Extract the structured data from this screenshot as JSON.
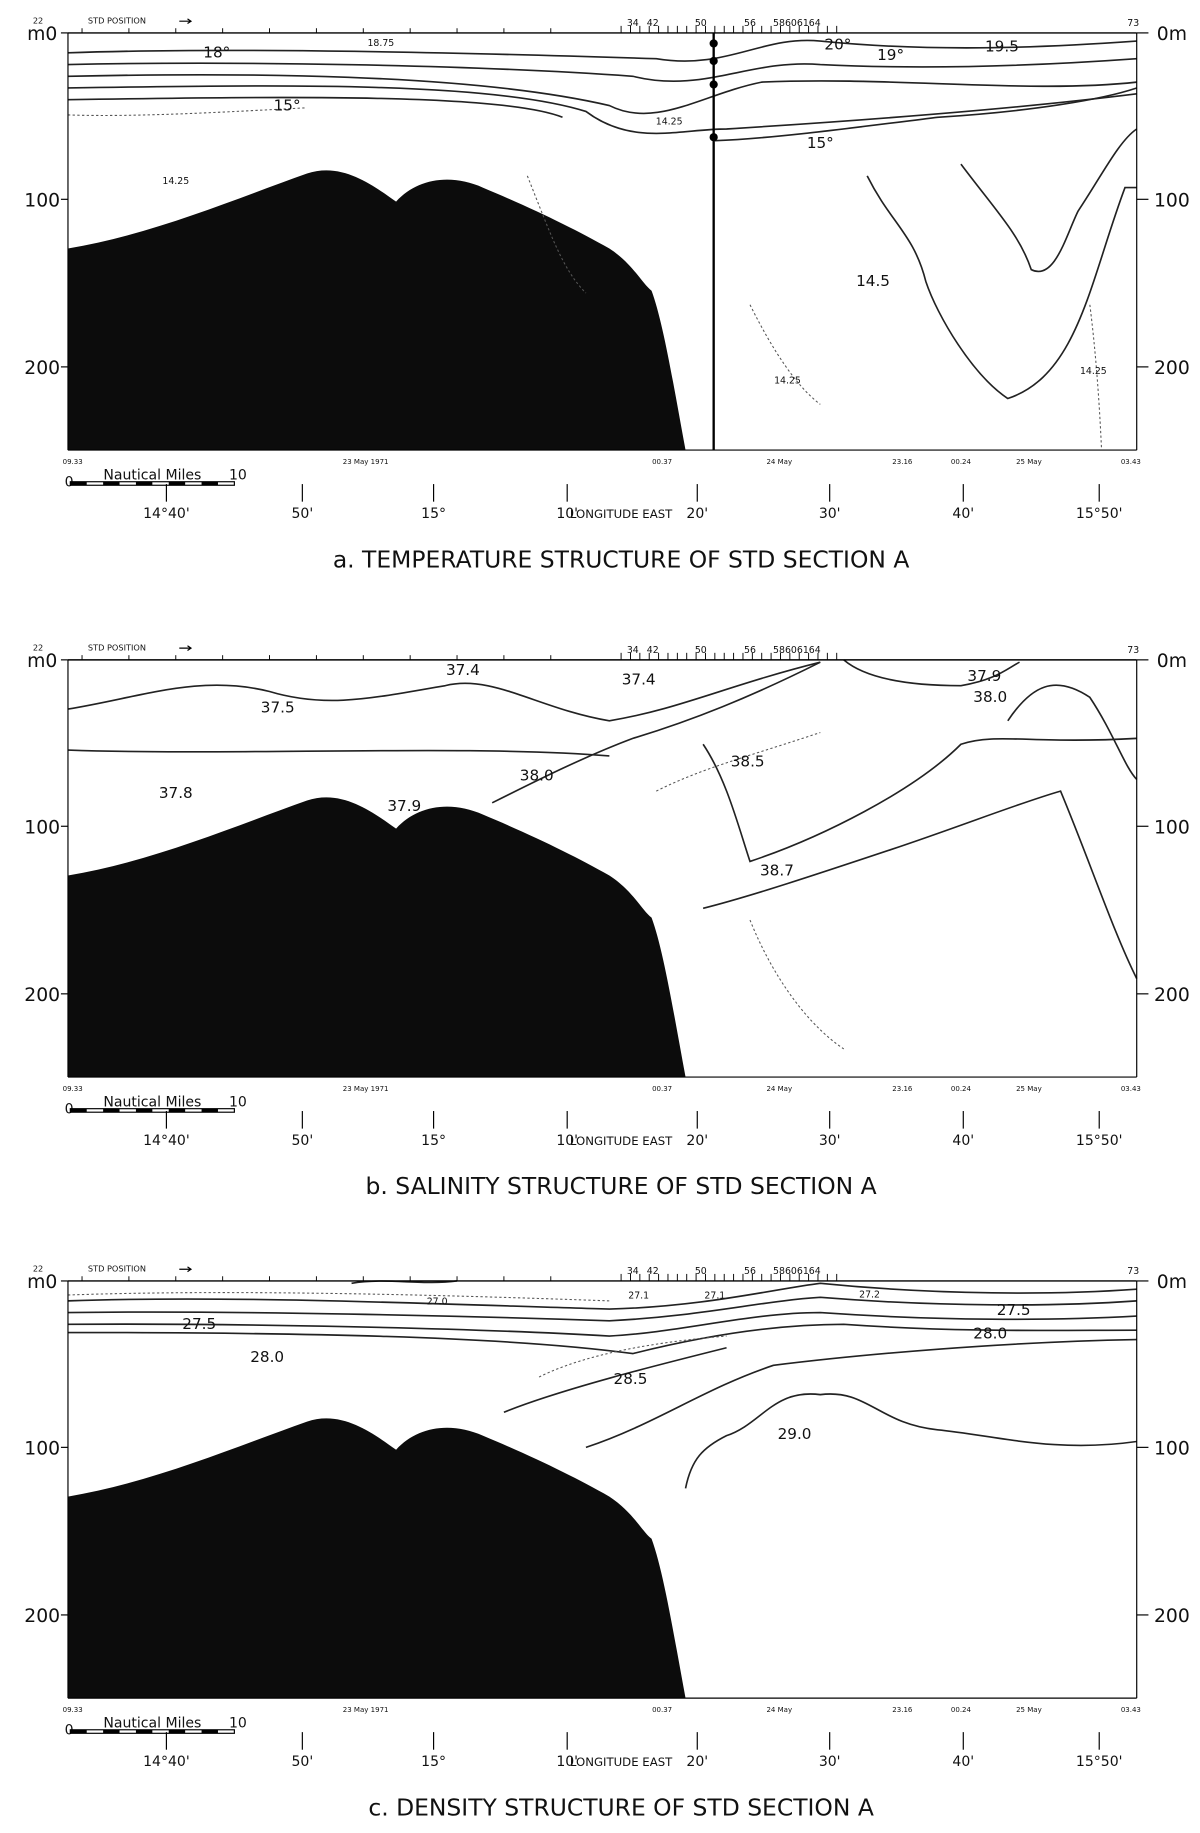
{
  "panels": [
    {
      "caption": "a. TEMPERATURE STRUCTURE OF STD SECTION A",
      "depth_left": [
        "m0",
        "100",
        "200"
      ],
      "depth_right": [
        "0m",
        "100",
        "200"
      ],
      "station_header": [
        "22",
        "STD POSITION"
      ],
      "stations": [
        "34",
        "42",
        "50",
        "56",
        "58606164",
        "73"
      ],
      "time_labels": [
        "09.33",
        "23 May 1971",
        "00.37",
        "24 May",
        "23.16",
        "00.24",
        "25 May",
        "03.43"
      ],
      "scale": {
        "label": "Nautical Miles",
        "start": "0",
        "end": "10"
      },
      "longitude_labels": [
        "14°40'",
        "50'",
        "15°",
        "10'",
        "LONGITUDE EAST",
        "20'",
        "30'",
        "40'",
        "15°50'"
      ],
      "contour_labels": [
        "18°",
        "18.75",
        "20°",
        "19°",
        "19.5",
        "15°",
        "14.25",
        "15°",
        "14.25",
        "14.5",
        "14.25",
        "14.25"
      ]
    },
    {
      "caption": "b. SALINITY STRUCTURE OF STD SECTION A",
      "depth_left": [
        "m0",
        "100",
        "200"
      ],
      "depth_right": [
        "0m",
        "100",
        "200"
      ],
      "station_header": [
        "22",
        "STD POSITION"
      ],
      "stations": [
        "34",
        "42",
        "50",
        "56",
        "58606164",
        "73"
      ],
      "time_labels": [
        "09.33",
        "23 May 1971",
        "00.37",
        "24 May",
        "23.16",
        "00.24",
        "25 May",
        "03.43"
      ],
      "scale": {
        "label": "Nautical Miles",
        "start": "0",
        "end": "10"
      },
      "longitude_labels": [
        "14°40'",
        "50'",
        "15°",
        "10'",
        "LONGITUDE EAST",
        "20'",
        "30'",
        "40'",
        "15°50'"
      ],
      "contour_labels": [
        "37.4",
        "37.4",
        "37.9",
        "38.0",
        "37.5",
        "38.0",
        "38.5",
        "37.8",
        "37.9",
        "38.7"
      ]
    },
    {
      "caption": "c. DENSITY STRUCTURE OF STD SECTION A",
      "depth_left": [
        "m0",
        "100",
        "200"
      ],
      "depth_right": [
        "0m",
        "100",
        "200"
      ],
      "station_header": [
        "22",
        "STD POSITION"
      ],
      "stations": [
        "34",
        "42",
        "50",
        "56",
        "58606164",
        "73"
      ],
      "time_labels": [
        "09.33",
        "23 May 1971",
        "00.37",
        "24 May",
        "23.16",
        "00.24",
        "25 May",
        "03.43"
      ],
      "scale": {
        "label": "Nautical Miles",
        "start": "0",
        "end": "10"
      },
      "longitude_labels": [
        "14°40'",
        "50'",
        "15°",
        "10'",
        "LONGITUDE EAST",
        "20'",
        "30'",
        "40'",
        "15°50'"
      ],
      "contour_labels": [
        "27.0",
        "27.1",
        "27.1",
        "27.2",
        "27.5",
        "27.5",
        "28.0",
        "28.0",
        "28.5",
        "29.0"
      ]
    }
  ]
}
